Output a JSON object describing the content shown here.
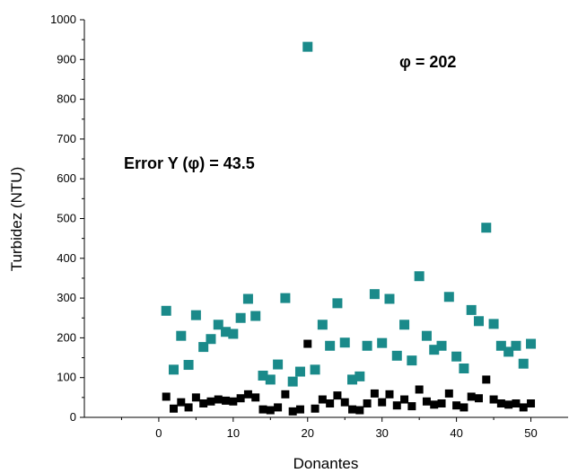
{
  "chart_data": {
    "type": "scatter",
    "title": "",
    "xlabel": "Donantes",
    "ylabel": "Turbidez (NTU)",
    "xlim": [
      -10,
      55
    ],
    "ylim": [
      0,
      1000
    ],
    "x_ticks": [
      0,
      10,
      20,
      30,
      40,
      50
    ],
    "y_ticks": [
      0,
      100,
      200,
      300,
      400,
      500,
      600,
      700,
      800,
      900,
      1000
    ],
    "grid": false,
    "legend": "none",
    "annotations": [
      {
        "text": "φ = 202"
      },
      {
        "text": "Error Y (φ) = 43.5"
      }
    ],
    "series": [
      {
        "color": "#1a8a8a",
        "x": [
          1,
          2,
          3,
          4,
          5,
          6,
          7,
          8,
          9,
          10,
          11,
          12,
          13,
          14,
          15,
          16,
          17,
          18,
          19,
          20,
          21,
          22,
          23,
          24,
          25,
          26,
          27,
          28,
          29,
          30,
          31,
          32,
          33,
          34,
          35,
          36,
          37,
          38,
          39,
          40,
          41,
          42,
          43,
          44,
          45,
          46,
          47,
          48,
          49,
          50
        ],
        "y": [
          268,
          120,
          205,
          132,
          257,
          177,
          197,
          233,
          215,
          210,
          250,
          298,
          255,
          105,
          95,
          133,
          300,
          90,
          115,
          932,
          120,
          233,
          180,
          287,
          188,
          95,
          103,
          180,
          310,
          187,
          298,
          155,
          233,
          143,
          355,
          205,
          170,
          180,
          303,
          153,
          123,
          270,
          242,
          477,
          235,
          180,
          165,
          180,
          135,
          185
        ]
      },
      {
        "color": "#000000",
        "x": [
          1,
          2,
          3,
          4,
          5,
          6,
          7,
          8,
          9,
          10,
          11,
          12,
          13,
          14,
          15,
          16,
          17,
          18,
          19,
          20,
          21,
          22,
          23,
          24,
          25,
          26,
          27,
          28,
          29,
          30,
          31,
          32,
          33,
          34,
          35,
          36,
          37,
          38,
          39,
          40,
          41,
          42,
          43,
          44,
          45,
          46,
          47,
          48,
          49,
          50
        ],
        "y": [
          52,
          22,
          38,
          25,
          50,
          35,
          40,
          45,
          42,
          40,
          48,
          58,
          50,
          20,
          18,
          25,
          58,
          15,
          20,
          185,
          22,
          45,
          35,
          55,
          38,
          20,
          18,
          35,
          60,
          38,
          58,
          30,
          45,
          28,
          70,
          40,
          32,
          35,
          60,
          30,
          25,
          52,
          48,
          95,
          45,
          35,
          32,
          35,
          25,
          35
        ]
      }
    ]
  }
}
